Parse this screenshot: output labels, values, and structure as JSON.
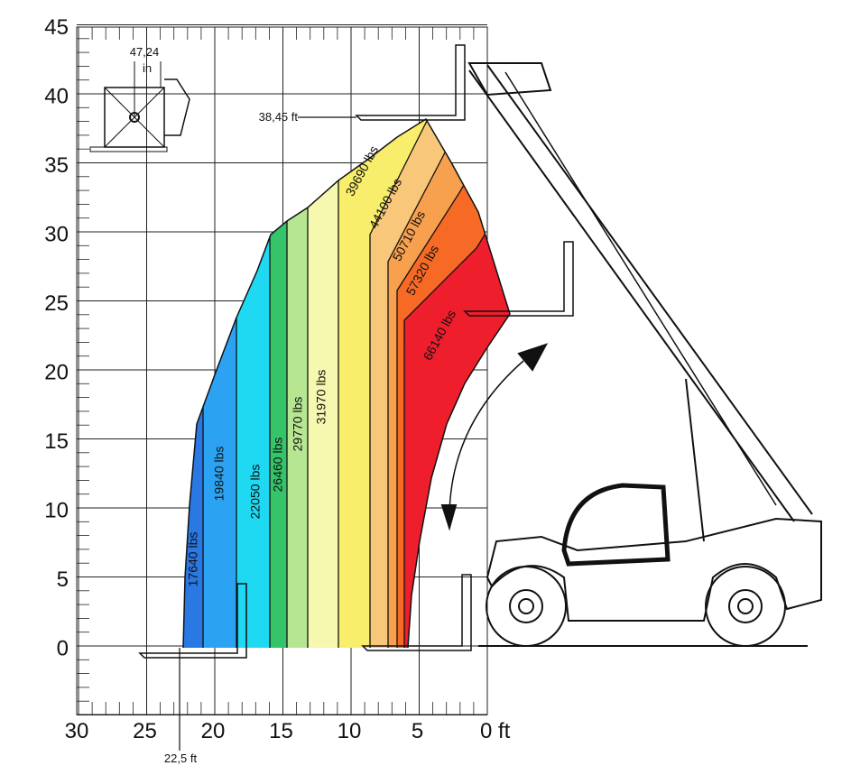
{
  "axes": {
    "y_ticks": [
      "45",
      "40",
      "35",
      "30",
      "25",
      "20",
      "15",
      "10",
      "5",
      "0"
    ],
    "x_ticks": [
      "30",
      "25",
      "20",
      "15",
      "10",
      "5",
      "0 ft"
    ]
  },
  "zones": [
    {
      "label": "17640 lbs",
      "color": "#2a78e4"
    },
    {
      "label": "19840 lbs",
      "color": "#2ba3f2"
    },
    {
      "label": "22050 lbs",
      "color": "#1fd8f2"
    },
    {
      "label": "26460 lbs",
      "color": "#35c46a"
    },
    {
      "label": "29770 lbs",
      "color": "#b6e692"
    },
    {
      "label": "31970 lbs",
      "color": "#f6f8b0"
    },
    {
      "label": "39690 lbs",
      "color": "#f8ee6c"
    },
    {
      "label": "44100 lbs",
      "color": "#f8c77a"
    },
    {
      "label": "50710 lbs",
      "color": "#f7a04e"
    },
    {
      "label": "57320 lbs",
      "color": "#f66a26"
    },
    {
      "label": "66140 lbs",
      "color": "#ee1e2c"
    }
  ],
  "annotations": {
    "width": "47,24",
    "width_unit": "in",
    "max_height": "38,45 ft",
    "max_reach": "22,5 ft"
  }
}
